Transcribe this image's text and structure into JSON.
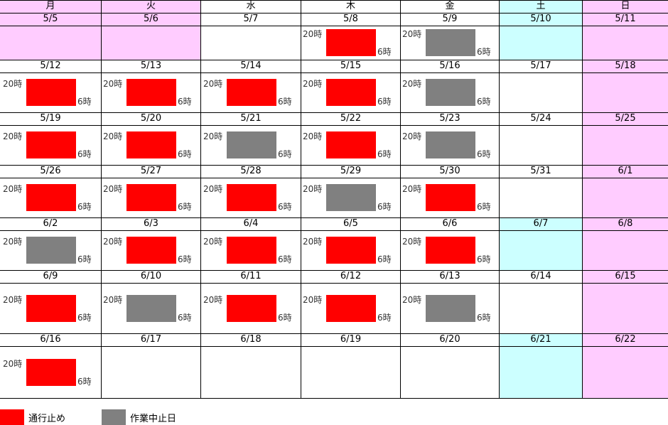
{
  "colors": {
    "weekday_bg": "#ffffff",
    "saturday_bg": "#ccffff",
    "sunday_bg": "#ffccff",
    "closure": "#ff0000",
    "suspended": "#808080"
  },
  "weekday_headers": [
    {
      "label": "月",
      "type": "sunday"
    },
    {
      "label": "火",
      "type": "sunday"
    },
    {
      "label": "水",
      "type": "weekday"
    },
    {
      "label": "木",
      "type": "weekday"
    },
    {
      "label": "金",
      "type": "weekday"
    },
    {
      "label": "土",
      "type": "saturday"
    },
    {
      "label": "日",
      "type": "sunday"
    }
  ],
  "start_label": "20時",
  "end_label": "6時",
  "weeks": [
    {
      "cells": [
        {
          "date": "5/5",
          "type": "sunday",
          "status": ""
        },
        {
          "date": "5/6",
          "type": "sunday",
          "status": ""
        },
        {
          "date": "5/7",
          "type": "weekday",
          "status": ""
        },
        {
          "date": "5/8",
          "type": "weekday",
          "status": "closure"
        },
        {
          "date": "5/9",
          "type": "weekday",
          "status": "suspended"
        },
        {
          "date": "5/10",
          "type": "saturday",
          "status": ""
        },
        {
          "date": "5/11",
          "type": "sunday",
          "status": ""
        }
      ]
    },
    {
      "cells": [
        {
          "date": "5/12",
          "type": "weekday",
          "status": "closure"
        },
        {
          "date": "5/13",
          "type": "weekday",
          "status": "closure"
        },
        {
          "date": "5/14",
          "type": "weekday",
          "status": "closure"
        },
        {
          "date": "5/15",
          "type": "weekday",
          "status": "closure"
        },
        {
          "date": "5/16",
          "type": "weekday",
          "status": "suspended"
        },
        {
          "date": "5/17",
          "type": "weekday",
          "status": ""
        },
        {
          "date": "5/18",
          "type": "sunday",
          "status": ""
        }
      ]
    },
    {
      "cells": [
        {
          "date": "5/19",
          "type": "weekday",
          "status": "closure"
        },
        {
          "date": "5/20",
          "type": "weekday",
          "status": "closure"
        },
        {
          "date": "5/21",
          "type": "weekday",
          "status": "suspended"
        },
        {
          "date": "5/22",
          "type": "weekday",
          "status": "closure"
        },
        {
          "date": "5/23",
          "type": "weekday",
          "status": "suspended"
        },
        {
          "date": "5/24",
          "type": "weekday",
          "status": ""
        },
        {
          "date": "5/25",
          "type": "sunday",
          "status": ""
        }
      ]
    },
    {
      "cells": [
        {
          "date": "5/26",
          "type": "weekday",
          "status": "closure"
        },
        {
          "date": "5/27",
          "type": "weekday",
          "status": "closure"
        },
        {
          "date": "5/28",
          "type": "weekday",
          "status": "closure"
        },
        {
          "date": "5/29",
          "type": "weekday",
          "status": "suspended"
        },
        {
          "date": "5/30",
          "type": "weekday",
          "status": "closure"
        },
        {
          "date": "5/31",
          "type": "weekday",
          "status": ""
        },
        {
          "date": "6/1",
          "type": "sunday",
          "status": ""
        }
      ]
    },
    {
      "cells": [
        {
          "date": "6/2",
          "type": "weekday",
          "status": "suspended"
        },
        {
          "date": "6/3",
          "type": "weekday",
          "status": "closure"
        },
        {
          "date": "6/4",
          "type": "weekday",
          "status": "closure"
        },
        {
          "date": "6/5",
          "type": "weekday",
          "status": "closure"
        },
        {
          "date": "6/6",
          "type": "weekday",
          "status": "closure"
        },
        {
          "date": "6/7",
          "type": "saturday",
          "status": ""
        },
        {
          "date": "6/8",
          "type": "sunday",
          "status": ""
        }
      ]
    },
    {
      "cells": [
        {
          "date": "6/9",
          "type": "weekday",
          "status": "closure"
        },
        {
          "date": "6/10",
          "type": "weekday",
          "status": "suspended"
        },
        {
          "date": "6/11",
          "type": "weekday",
          "status": "closure"
        },
        {
          "date": "6/12",
          "type": "weekday",
          "status": "closure"
        },
        {
          "date": "6/13",
          "type": "weekday",
          "status": "suspended"
        },
        {
          "date": "6/14",
          "type": "weekday",
          "status": ""
        },
        {
          "date": "6/15",
          "type": "sunday",
          "status": ""
        }
      ]
    },
    {
      "cells": [
        {
          "date": "6/16",
          "type": "weekday",
          "status": "closure"
        },
        {
          "date": "6/17",
          "type": "weekday",
          "status": ""
        },
        {
          "date": "6/18",
          "type": "weekday",
          "status": ""
        },
        {
          "date": "6/19",
          "type": "weekday",
          "status": ""
        },
        {
          "date": "6/20",
          "type": "weekday",
          "status": ""
        },
        {
          "date": "6/21",
          "type": "saturday",
          "status": ""
        },
        {
          "date": "6/22",
          "type": "sunday",
          "status": ""
        }
      ]
    }
  ],
  "legend": [
    {
      "label": "通行止め",
      "status": "closure"
    },
    {
      "label": "作業中止日",
      "status": "suspended"
    }
  ]
}
